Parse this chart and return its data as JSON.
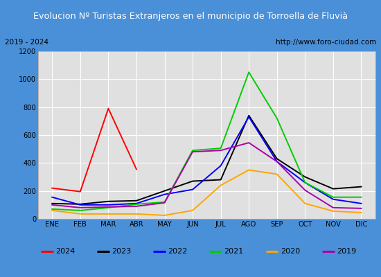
{
  "title": "Evolucion Nº Turistas Extranjeros en el municipio de Torroella de Fluvià",
  "subtitle_left": "2019 - 2024",
  "subtitle_right": "http://www.foro-ciudad.com",
  "months": [
    "ENE",
    "FEB",
    "MAR",
    "ABR",
    "MAY",
    "JUN",
    "JUL",
    "AGO",
    "SEP",
    "OCT",
    "NOV",
    "DIC"
  ],
  "series": {
    "2024": [
      220,
      195,
      790,
      355,
      null,
      null,
      null,
      null,
      null,
      null,
      null,
      null
    ],
    "2023": [
      110,
      105,
      125,
      130,
      200,
      270,
      280,
      740,
      430,
      300,
      215,
      230
    ],
    "2022": [
      155,
      100,
      100,
      110,
      175,
      210,
      380,
      730,
      410,
      260,
      140,
      110
    ],
    "2021": [
      70,
      60,
      80,
      105,
      120,
      490,
      505,
      1050,
      720,
      260,
      155,
      155
    ],
    "2020": [
      60,
      35,
      35,
      35,
      25,
      60,
      240,
      350,
      320,
      110,
      55,
      45
    ],
    "2019": [
      100,
      80,
      85,
      90,
      115,
      480,
      490,
      545,
      410,
      205,
      80,
      75
    ]
  },
  "colors": {
    "2024": "#ff0000",
    "2023": "#000000",
    "2022": "#0000ff",
    "2021": "#00cc00",
    "2020": "#ffa500",
    "2019": "#aa00aa"
  },
  "ylim": [
    0,
    1200
  ],
  "yticks": [
    0,
    200,
    400,
    600,
    800,
    1000,
    1200
  ],
  "title_bg": "#4a90d9",
  "title_color": "#ffffff",
  "plot_bg": "#e0e0e0",
  "grid_color": "#ffffff",
  "border_color": "#4a90d9",
  "fig_bg": "#4a90d9"
}
